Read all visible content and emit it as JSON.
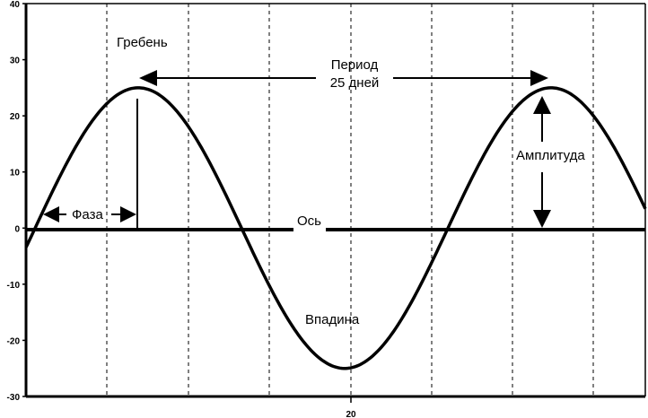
{
  "chart_data": {
    "type": "line",
    "title": "",
    "xlabel": "",
    "ylabel": "",
    "ylim": [
      -30,
      40
    ],
    "xlim": [
      0,
      37.5
    ],
    "y_ticks": [
      "40",
      "30",
      "20",
      "10",
      "0",
      "-10",
      "-20",
      "-30"
    ],
    "x_ticks": [
      "20"
    ],
    "grid": "vertical-dashed",
    "series": [
      {
        "shape": "sine",
        "amplitude": 25,
        "period": 25,
        "phase": 6.8
      }
    ],
    "annotations": {
      "crest": "Гребень",
      "period_line1": "Период",
      "period_line2": "25 дней",
      "amplitude": "Амплитуда",
      "phase": "Фаза",
      "axis": "Ось",
      "trough": "Впадина"
    }
  }
}
